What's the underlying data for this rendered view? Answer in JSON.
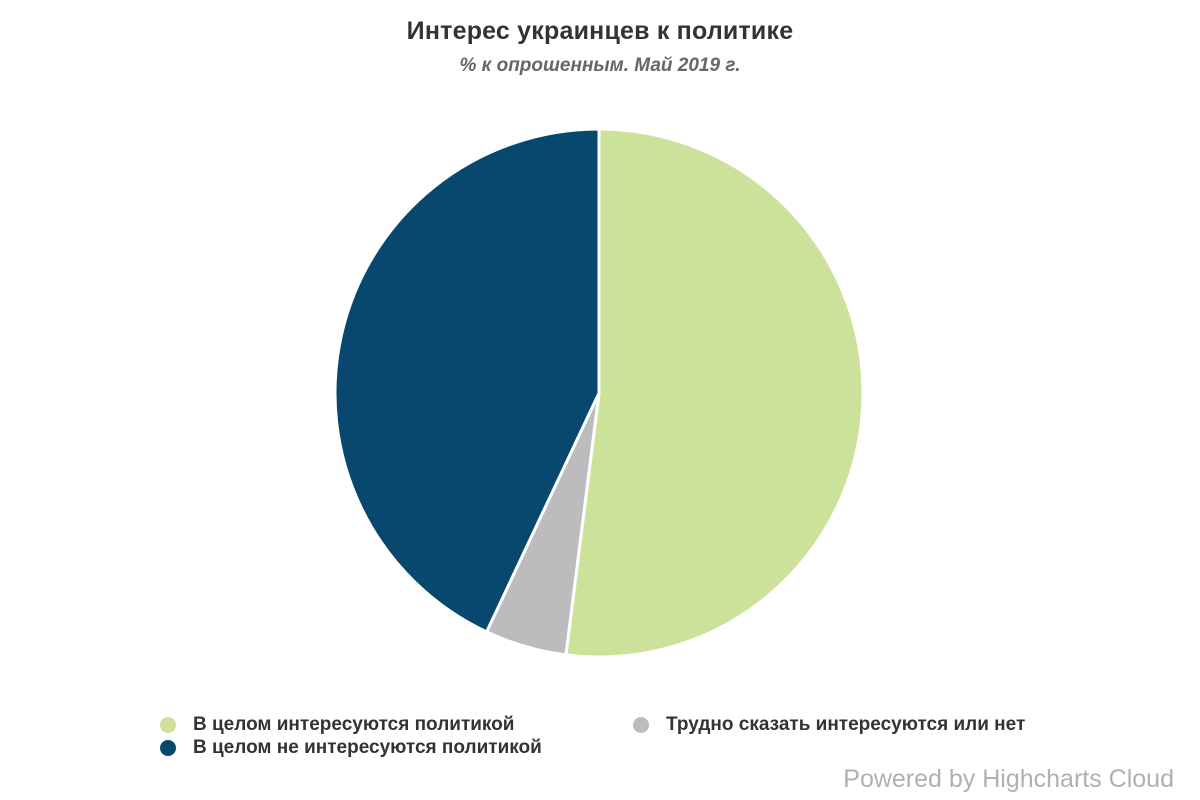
{
  "chart_data": {
    "type": "pie",
    "title": "Интерес украинцев к политике",
    "subtitle": "% к опрошенным. Май 2019 г.",
    "start_angle_deg": 0,
    "direction": "clockwise",
    "legend_position": "bottom",
    "total": 100,
    "slices": [
      {
        "id": "interested",
        "label": "В целом интересуются политикой",
        "value": 52,
        "color": "#cce29b"
      },
      {
        "id": "hard-to-say",
        "label": "Трудно сказать интересуются или нет",
        "value": 5,
        "color": "#bcbcbe"
      },
      {
        "id": "not-interested",
        "label": "В целом не интересуются политикой",
        "value": 43,
        "color": "#08486e"
      }
    ]
  },
  "credits": {
    "label": "Powered by Highcharts Cloud"
  },
  "colors": {
    "background": "#ffffff",
    "title_text": "#333333",
    "subtitle_text": "#666666",
    "legend_text": "#333333",
    "credits_text": "#b0b0b0",
    "slice_border": "#ffffff"
  }
}
